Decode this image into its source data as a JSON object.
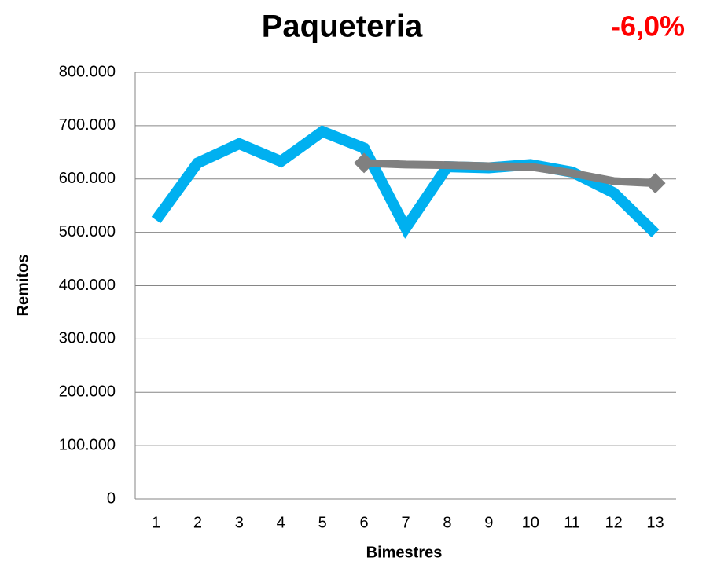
{
  "chart_data": {
    "type": "line",
    "title": "Paqueteria",
    "annotation": "-6,0%",
    "x_label": "Bimestres",
    "y_label": "Remitos",
    "categories": [
      1,
      2,
      3,
      4,
      5,
      6,
      7,
      8,
      9,
      10,
      11,
      12,
      13
    ],
    "series": [
      {
        "color": "#00b0f0",
        "values": [
          523000,
          630000,
          666000,
          633000,
          689000,
          658000,
          508000,
          623000,
          621000,
          627000,
          613000,
          574000,
          498000
        ]
      },
      {
        "color": "#808080",
        "values": [
          null,
          null,
          null,
          null,
          null,
          630000,
          627000,
          626000,
          624000,
          623000,
          611000,
          596000,
          592000
        ]
      }
    ],
    "ylim": [
      0,
      800000
    ],
    "yticks": [
      0,
      {
        "value": 100000,
        "label": "100.000"
      },
      {
        "value": 200000,
        "label": "200.000"
      },
      {
        "value": 300000,
        "label": "300.000"
      },
      {
        "value": 400000,
        "label": "400.000"
      },
      {
        "value": 500000,
        "label": "500.000"
      },
      {
        "value": 600000,
        "label": "600.000"
      },
      {
        "value": 700000,
        "label": "700.000"
      },
      {
        "value": 800000,
        "label": "800.000"
      }
    ],
    "grid": true
  }
}
